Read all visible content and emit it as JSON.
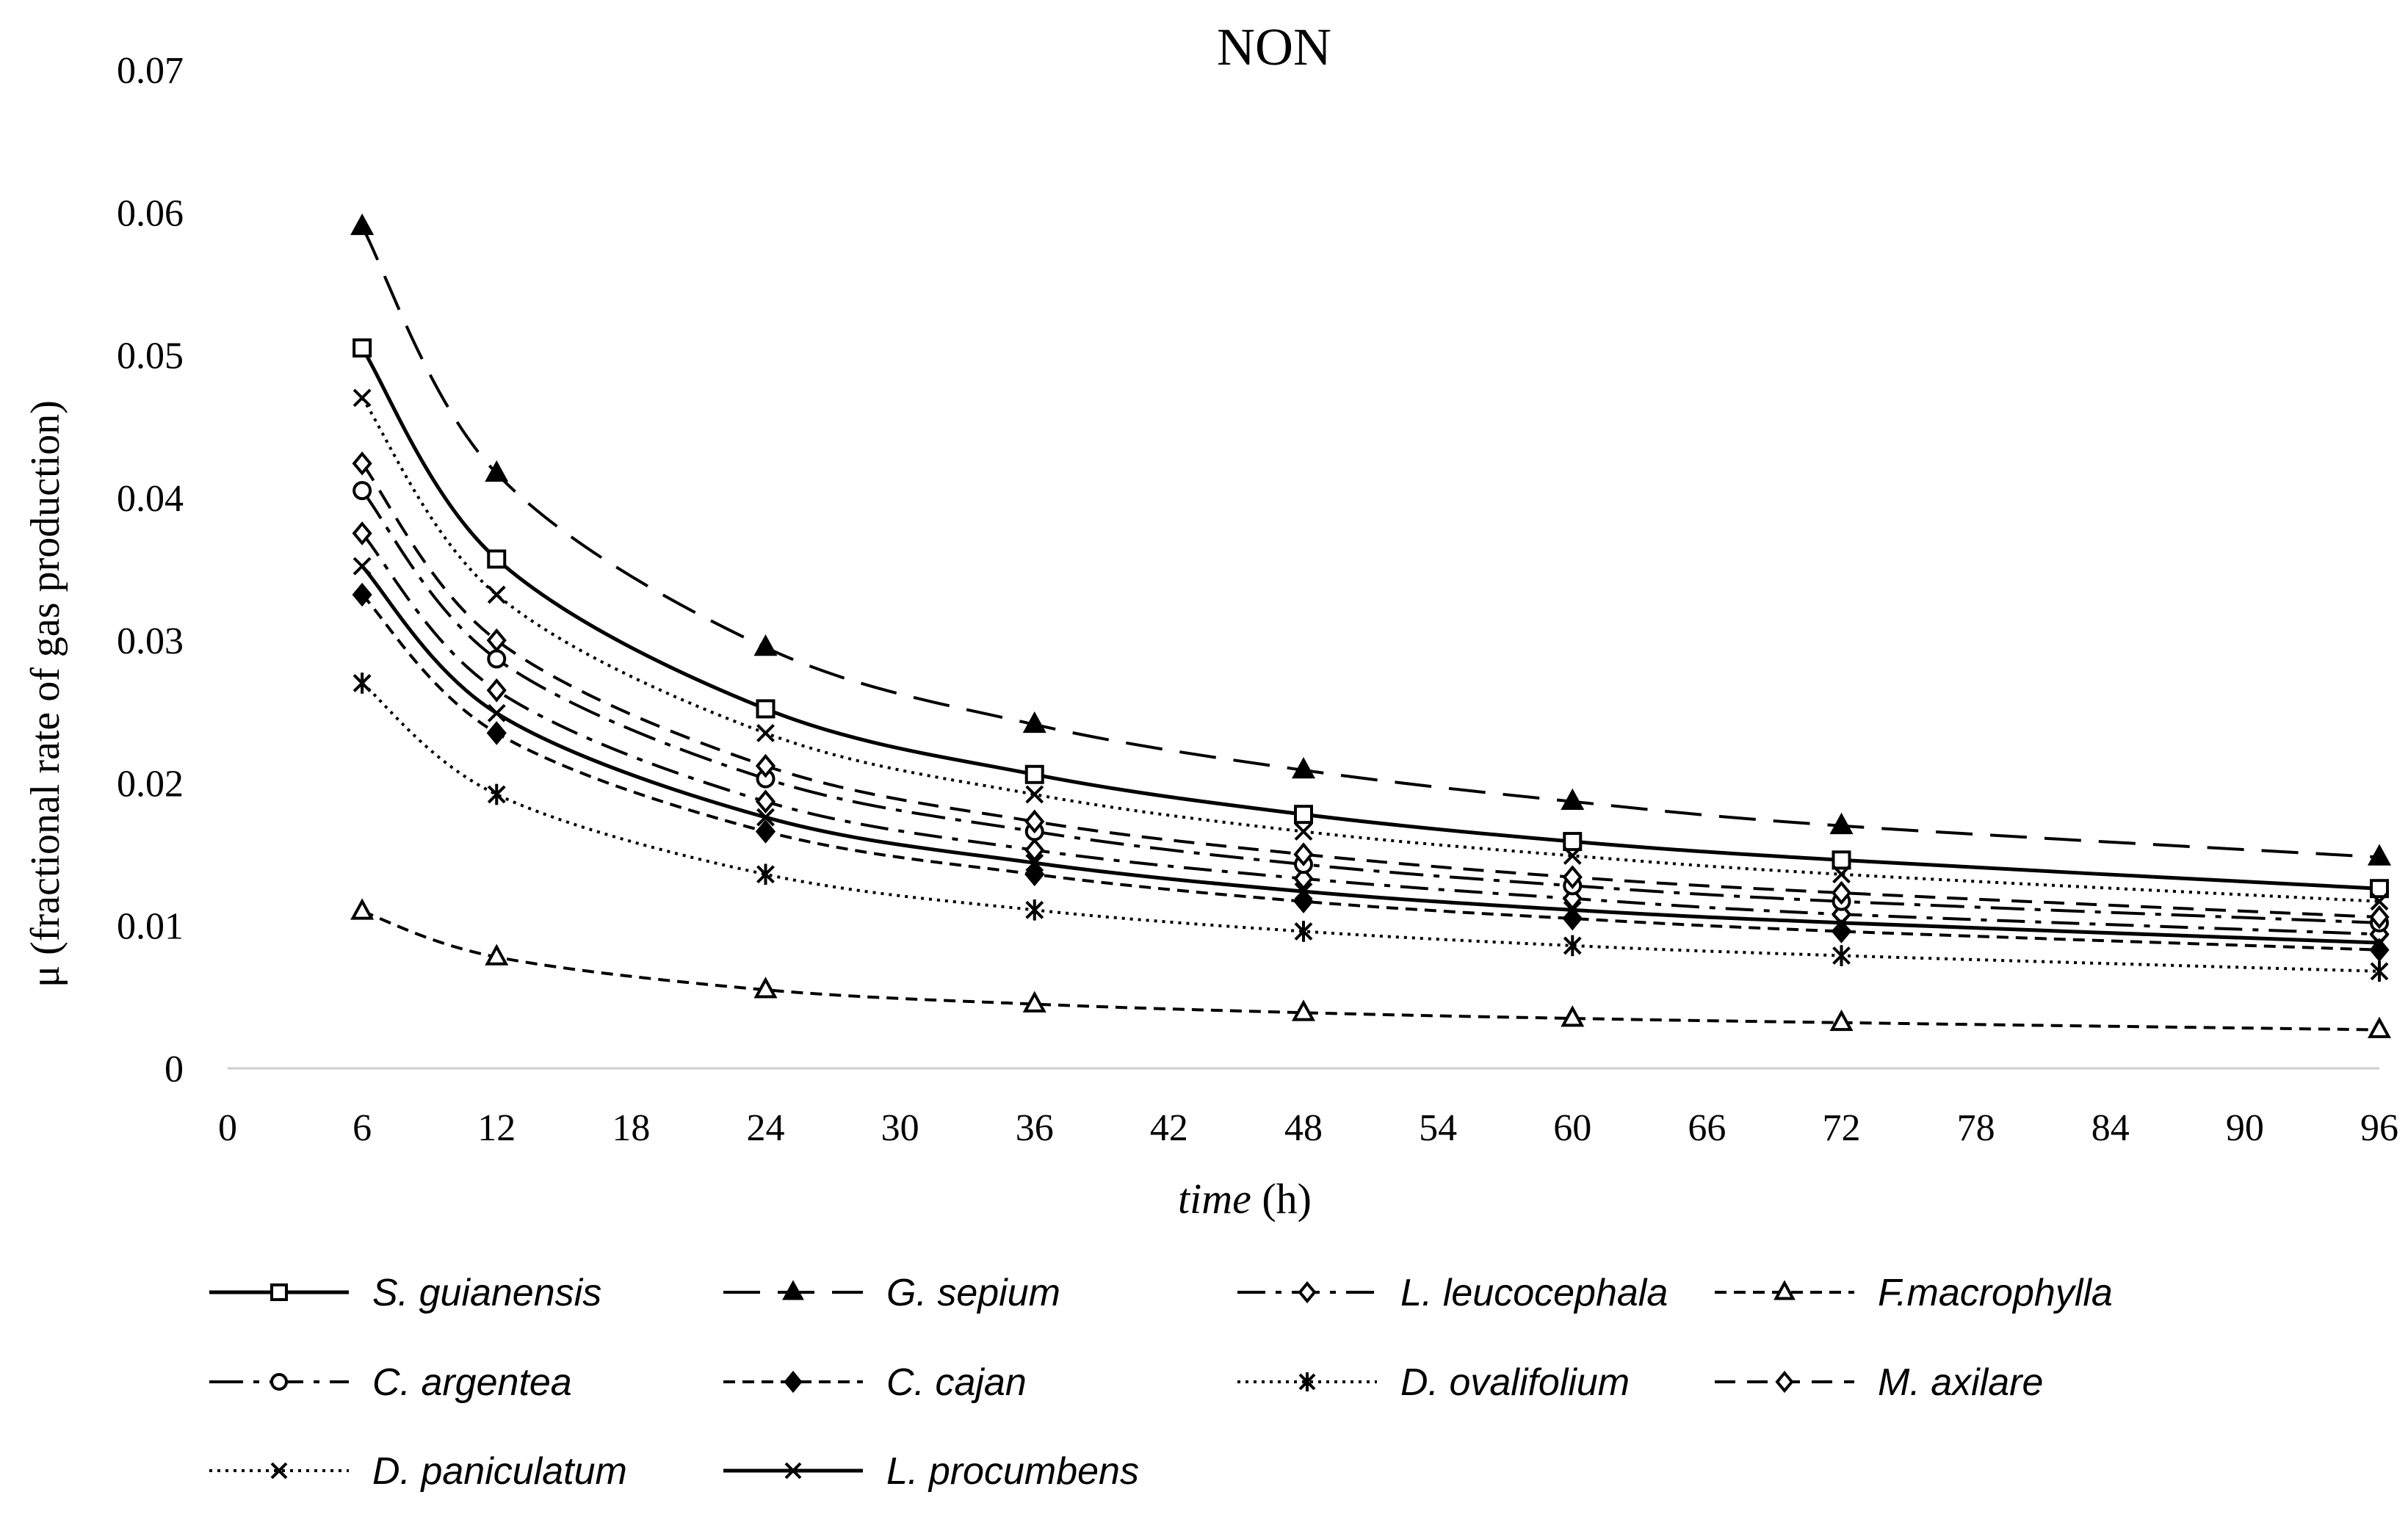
{
  "chart_data": {
    "type": "line",
    "title": "NON",
    "xlabel_italic": "time",
    "xlabel_unit": " (h)",
    "ylabel": "μ (fractional rate of gas production)",
    "xlim": [
      0,
      96
    ],
    "ylim": [
      0,
      0.07
    ],
    "x_ticks": [
      0,
      6,
      12,
      18,
      24,
      30,
      36,
      42,
      48,
      54,
      60,
      66,
      72,
      78,
      84,
      90,
      96
    ],
    "y_ticks": [
      0,
      0.01,
      0.02,
      0.03,
      0.04,
      0.05,
      0.06,
      0.07
    ],
    "y_tick_labels": [
      "0",
      "0.01",
      "0.02",
      "0.03",
      "0.04",
      "0.05",
      "0.06",
      "0.07"
    ],
    "x": [
      6,
      12,
      24,
      36,
      48,
      60,
      72,
      96
    ],
    "series": [
      {
        "name": "S. guianensis",
        "marker": "square-open",
        "dash": "solid",
        "values": [
          0.0505,
          0.0357,
          0.0252,
          0.0206,
          0.0178,
          0.0159,
          0.0146,
          0.0126
        ]
      },
      {
        "name": "G. sepium",
        "marker": "triangle-filled",
        "dash": "longdash",
        "values": [
          0.059,
          0.0417,
          0.0295,
          0.0241,
          0.0209,
          0.0187,
          0.017,
          0.0148
        ]
      },
      {
        "name": "L. leucocephala",
        "marker": "diamond-open",
        "dash": "dashdot",
        "values": [
          0.0375,
          0.0265,
          0.0187,
          0.0153,
          0.0133,
          0.0119,
          0.0108,
          0.0094
        ]
      },
      {
        "name": "F.macrophylla",
        "marker": "triangle-open",
        "dash": "shortdash",
        "values": [
          0.011,
          0.0078,
          0.0055,
          0.0045,
          0.0039,
          0.0035,
          0.0032,
          0.0027
        ]
      },
      {
        "name": "C. argentea",
        "marker": "circle-open",
        "dash": "longdashdot",
        "values": [
          0.0405,
          0.0287,
          0.0203,
          0.0166,
          0.0143,
          0.0128,
          0.0117,
          0.0102
        ]
      },
      {
        "name": "C. cajan",
        "marker": "diamond-filled",
        "dash": "shortdash",
        "values": [
          0.0332,
          0.0235,
          0.0166,
          0.0136,
          0.0117,
          0.0105,
          0.0096,
          0.0083
        ]
      },
      {
        "name": "D. ovalifolium",
        "marker": "asterisk",
        "dash": "dotted",
        "values": [
          0.027,
          0.0192,
          0.0136,
          0.0111,
          0.0096,
          0.0086,
          0.0079,
          0.0068
        ]
      },
      {
        "name": "M. axilare",
        "marker": "diamond-open",
        "dash": "dashed",
        "values": [
          0.0424,
          0.03,
          0.0212,
          0.0173,
          0.015,
          0.0134,
          0.0123,
          0.0106
        ]
      },
      {
        "name": "D. paniculatum",
        "marker": "x",
        "dash": "dotted",
        "values": [
          0.047,
          0.0332,
          0.0235,
          0.0192,
          0.0166,
          0.0149,
          0.0136,
          0.0117
        ]
      },
      {
        "name": "L. procumbens",
        "marker": "x",
        "dash": "solid",
        "values": [
          0.0352,
          0.0249,
          0.0176,
          0.0144,
          0.0124,
          0.0111,
          0.0102,
          0.0088
        ]
      }
    ],
    "legend_position": "bottom",
    "grid": false
  }
}
